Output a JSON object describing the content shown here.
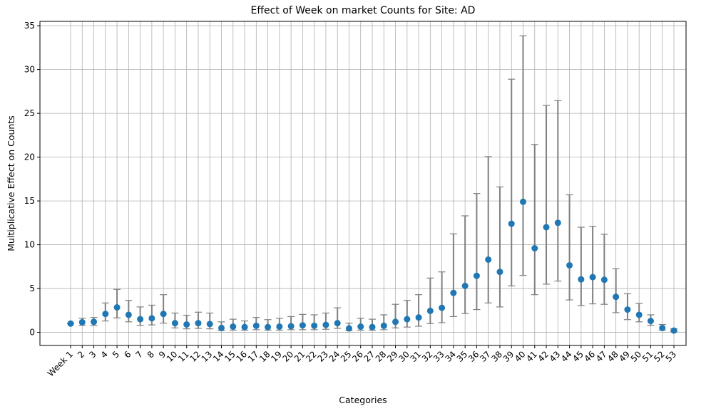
{
  "chart_data": {
    "type": "scatter",
    "title": "Effect of Week on market Counts for Site: AD",
    "xlabel": "Categories",
    "ylabel": "Multiplicative Effect on Counts",
    "ylim": [
      -1.5,
      35.5
    ],
    "yticks": [
      0,
      5,
      10,
      15,
      20,
      25,
      30,
      35
    ],
    "grid": true,
    "marker_color": "#1f77b4",
    "errorbar_color": "#808080",
    "categories": [
      "Week 1",
      "2",
      "3",
      "4",
      "5",
      "6",
      "7",
      "8",
      "9",
      "10",
      "11",
      "12",
      "13",
      "14",
      "15",
      "16",
      "17",
      "18",
      "19",
      "20",
      "21",
      "22",
      "23",
      "24",
      "25",
      "26",
      "27",
      "28",
      "29",
      "30",
      "31",
      "32",
      "33",
      "34",
      "35",
      "36",
      "37",
      "38",
      "39",
      "40",
      "41",
      "42",
      "43",
      "44",
      "45",
      "46",
      "47",
      "48",
      "49",
      "50",
      "51",
      "52",
      "53"
    ],
    "values": [
      1.0,
      1.15,
      1.2,
      2.1,
      2.85,
      2.0,
      1.5,
      1.6,
      2.1,
      1.05,
      0.9,
      1.05,
      0.95,
      0.5,
      0.65,
      0.6,
      0.75,
      0.6,
      0.65,
      0.7,
      0.8,
      0.75,
      0.85,
      1.05,
      0.45,
      0.65,
      0.6,
      0.75,
      1.2,
      1.5,
      1.7,
      2.45,
      2.8,
      4.5,
      5.3,
      6.45,
      8.3,
      6.9,
      12.4,
      14.9,
      9.6,
      12.0,
      12.5,
      7.65,
      6.05,
      6.3,
      6.0,
      4.05,
      2.6,
      2.0,
      1.3,
      0.5,
      0.2
    ],
    "lower": [
      1.0,
      0.8,
      0.8,
      1.3,
      1.65,
      1.2,
      0.8,
      0.85,
      1.05,
      0.5,
      0.4,
      0.45,
      0.4,
      0.2,
      0.25,
      0.25,
      0.3,
      0.25,
      0.25,
      0.3,
      0.3,
      0.3,
      0.35,
      0.45,
      0.2,
      0.25,
      0.25,
      0.3,
      0.5,
      0.6,
      0.7,
      1.0,
      1.1,
      1.8,
      2.15,
      2.6,
      3.35,
      2.9,
      5.3,
      6.5,
      4.3,
      5.5,
      5.85,
      3.7,
      3.05,
      3.25,
      3.2,
      2.25,
      1.45,
      1.2,
      0.8,
      0.25,
      0.1
    ],
    "upper": [
      1.0,
      1.6,
      1.7,
      3.35,
      4.9,
      3.65,
      2.9,
      3.1,
      4.3,
      2.2,
      1.95,
      2.3,
      2.2,
      1.2,
      1.5,
      1.3,
      1.7,
      1.45,
      1.6,
      1.8,
      2.05,
      2.0,
      2.2,
      2.8,
      1.05,
      1.6,
      1.5,
      2.0,
      3.2,
      3.65,
      4.3,
      6.2,
      6.9,
      11.25,
      13.3,
      15.85,
      20.05,
      16.6,
      28.9,
      33.85,
      21.45,
      25.9,
      26.45,
      15.7,
      12.0,
      12.1,
      11.2,
      7.25,
      4.4,
      3.3,
      2.0,
      0.9,
      0.4
    ]
  }
}
